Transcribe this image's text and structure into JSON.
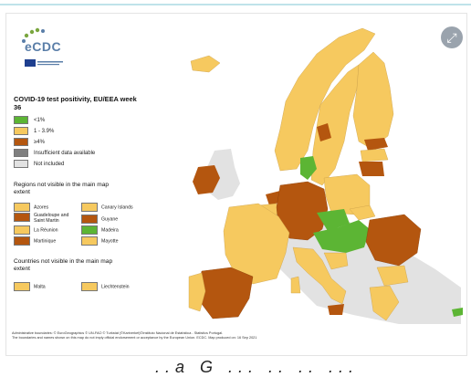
{
  "logo": {
    "text": "eCDC"
  },
  "legend": {
    "title": "COVID-19 test positivity, EU/EEA week 36",
    "items": [
      {
        "label": "<1%",
        "color": "#5cb534"
      },
      {
        "label": "1 - 3.9%",
        "color": "#f6c95f"
      },
      {
        "label": "≥4%",
        "color": "#b4560f"
      },
      {
        "label": "Insufficient data available",
        "color": "#7f7f7f"
      },
      {
        "label": "Not included",
        "color": "#e2e2e2"
      }
    ]
  },
  "regions": {
    "title": "Regions not visible in the main map extent",
    "items": [
      {
        "label": "Azores",
        "color": "#f6c95f"
      },
      {
        "label": "Canary Islands",
        "color": "#f6c95f"
      },
      {
        "label": "Guadeloupe and Saint Martin",
        "color": "#b4560f"
      },
      {
        "label": "Guyane",
        "color": "#b4560f"
      },
      {
        "label": "La Réunion",
        "color": "#f6c95f"
      },
      {
        "label": "Madeira",
        "color": "#5cb534"
      },
      {
        "label": "Martinique",
        "color": "#b4560f"
      },
      {
        "label": "Mayotte",
        "color": "#f6c95f"
      }
    ]
  },
  "countries": {
    "title": "Countries not visible in the main map extent",
    "items": [
      {
        "label": "Malta",
        "color": "#f6c95f"
      },
      {
        "label": "Liechtenstein",
        "color": "#f6c95f"
      }
    ]
  },
  "attribution": {
    "line1": "Administrative boundaries: © EuroGeographics © UN-FAO © Turkstat (©Kartverket)©Instituto Nacional de Estatística - Statistics Portugal.",
    "line2": "The boundaries and names shown on this map do not imply official endorsement or acceptance by the European Union. ECDC. Map produced on: 16 Sep 2021"
  },
  "bottom_text": "..a  G  ...  .. .. ...",
  "colors": {
    "low": "#5cb534",
    "mid": "#f6c95f",
    "high": "#b4560f",
    "nodata": "#e2e2e2",
    "sea": "#ffffff"
  }
}
